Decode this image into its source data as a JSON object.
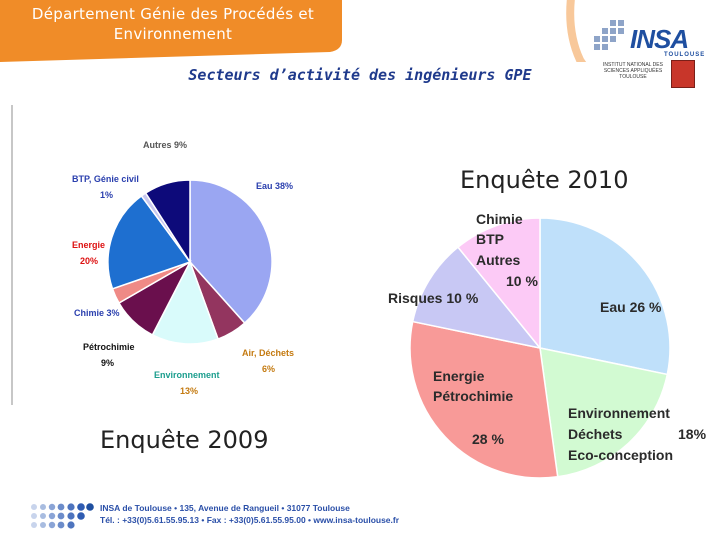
{
  "header": {
    "department": "Département Génie des Procédés et Environnement",
    "subtitle": "Secteurs d’activité des ingénieurs GPE",
    "logo_text": "INSA",
    "logo_city": "TOULOUSE",
    "logo_caption": "INSTITUT NATIONAL DES SCIENCES APPLIQUÉES TOULOUSE"
  },
  "footer": {
    "line1": "INSA de Toulouse • 135, Avenue de Rangueil • 31077 Toulouse",
    "line2": "Tél. : +33(0)5.61.55.95.13 • Fax : +33(0)5.61.55.95.00 • www.insa-toulouse.fr"
  },
  "colors": {
    "orange": "#f08c28",
    "blue": "#1f3a8c"
  },
  "chart_data": [
    {
      "type": "pie",
      "title": "Enquête 2009",
      "unit": "%",
      "slices": [
        {
          "label": "Eau 38%",
          "value": 38,
          "color": "#9aa6f2"
        },
        {
          "label": "Air, Déchets 6%",
          "value": 6,
          "color": "#93355f"
        },
        {
          "label": "Environnement 13%",
          "value": 13,
          "color": "#d9fbfb"
        },
        {
          "label": "Pétrochimie 9%",
          "value": 9,
          "color": "#6a0f4d"
        },
        {
          "label": "Chimie 3%",
          "value": 3,
          "color": "#ef8a86"
        },
        {
          "label": "Energie 20%",
          "value": 20,
          "color": "#1e6fd0"
        },
        {
          "label": "BTP, Génie civil 1%",
          "value": 1,
          "color": "#c8c8f0"
        },
        {
          "label": "Autres 9%",
          "value": 9,
          "color": "#0d0a7a"
        }
      ],
      "labels": {
        "eau": "Eau 38%",
        "air_1": "Air, Déchets",
        "air_2": "6%",
        "env_1": "Environnement",
        "env_2": "13%",
        "petro_1": "Pétrochimie",
        "petro_2": "9%",
        "chimie": "Chimie 3%",
        "energie_1": "Energie",
        "energie_2": "20%",
        "btp_1": "BTP, Génie civil",
        "btp_2": "1%",
        "autres": "Autres 9%"
      }
    },
    {
      "type": "pie",
      "title": "Enquête 2010",
      "unit": "%",
      "slices": [
        {
          "label": "Eau 26 %",
          "value": 26,
          "color": "#bfe0fa"
        },
        {
          "label": "Environnement Déchets Eco-conception 18%",
          "value": 18,
          "color": "#d2fad2"
        },
        {
          "label": "Energie Pétrochimie 28 %",
          "value": 28,
          "color": "#f89a98"
        },
        {
          "label": "Risques 10 %",
          "value": 10,
          "color": "#c8c8f4"
        },
        {
          "label": "Chimie BTP Autres 10 %",
          "value": 10,
          "color": "#fccaf6"
        }
      ],
      "labels": {
        "eau": "Eau 26 %",
        "env_1": "Environnement",
        "env_2": "Déchets",
        "env_3": "Eco-conception",
        "env_pct": "18%",
        "energie_1": "Energie",
        "energie_2": "Pétrochimie",
        "energie_pct": "28 %",
        "risques": "Risques 10 %",
        "chimie_1": "Chimie",
        "chimie_2": "BTP",
        "chimie_3": "Autres",
        "chimie_pct": "10 %"
      }
    }
  ]
}
